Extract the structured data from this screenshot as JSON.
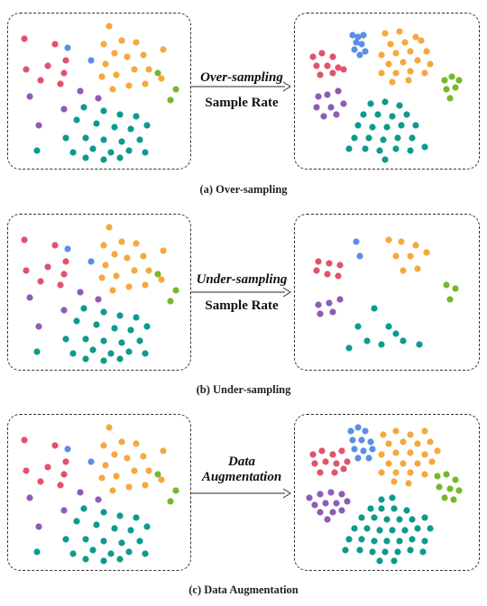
{
  "colors": {
    "red": "#e0536b",
    "blue": "#5b8ee6",
    "orange": "#f5a83c",
    "purple": "#8e5bb5",
    "teal": "#0e9a8c",
    "green": "#76b82a"
  },
  "rows": [
    {
      "id": "over",
      "method_label": "Over-sampling",
      "rate_label": "Sample Rate",
      "caption": "(a) Over-sampling"
    },
    {
      "id": "under",
      "method_label": "Under-sampling",
      "rate_label": "Sample Rate",
      "caption": "(b) Under-sampling"
    },
    {
      "id": "aug",
      "method_line1": "Data",
      "method_line2": "Augmentation",
      "caption": "(c) Data Augmentation"
    }
  ]
}
